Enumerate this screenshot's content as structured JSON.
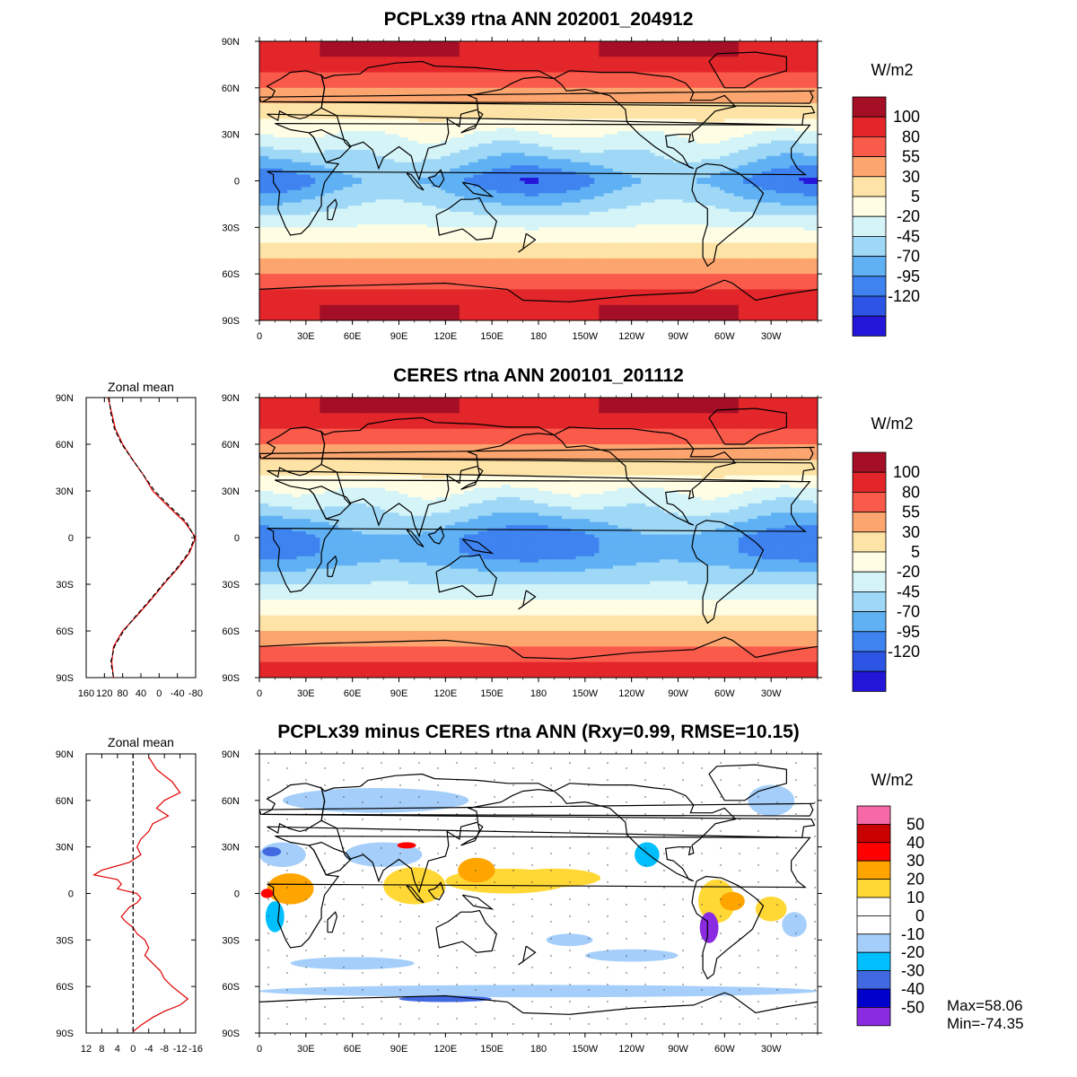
{
  "chart_data": [
    {
      "type": "heatmap",
      "title": "PCPLx39 rtna ANN 202001_204912",
      "units": "W/m2",
      "x_ticks": [
        "0",
        "30E",
        "60E",
        "90E",
        "120E",
        "150E",
        "180",
        "150W",
        "120W",
        "90W",
        "60W",
        "30W"
      ],
      "y_ticks": [
        "90N",
        "60N",
        "30N",
        "0",
        "30S",
        "60S",
        "90S"
      ],
      "colorbar": {
        "levels": [
          "100",
          "80",
          "55",
          "30",
          "5",
          "-20",
          "-45",
          "-70",
          "-95",
          "-120"
        ],
        "colors": [
          "#a50f26",
          "#e3262a",
          "#f95a4a",
          "#fca56f",
          "#fee3a6",
          "#fffde4",
          "#d4f4f8",
          "#9fd8f6",
          "#5fb1f4",
          "#3e83f0",
          "#2c55e6",
          "#2416d9"
        ]
      },
      "zonal_band_values": [
        100,
        100,
        80,
        55,
        30,
        5,
        -20,
        -45,
        -70,
        -95,
        -70,
        -45,
        -20,
        5,
        30,
        55,
        80,
        100,
        100
      ]
    },
    {
      "type": "heatmap",
      "title": "CERES rtna ANN 200101_201112",
      "units": "W/m2",
      "x_ticks": [
        "0",
        "30E",
        "60E",
        "90E",
        "120E",
        "150E",
        "180",
        "150W",
        "120W",
        "90W",
        "60W",
        "30W"
      ],
      "y_ticks": [
        "90N",
        "60N",
        "30N",
        "0",
        "30S",
        "60S",
        "90S"
      ],
      "colorbar": {
        "levels": [
          "100",
          "80",
          "55",
          "30",
          "5",
          "-20",
          "-45",
          "-70",
          "-95",
          "-120"
        ],
        "colors": [
          "#a50f26",
          "#e3262a",
          "#f95a4a",
          "#fca56f",
          "#fee3a6",
          "#fffde4",
          "#d4f4f8",
          "#9fd8f6",
          "#5fb1f4",
          "#3e83f0",
          "#2c55e6",
          "#2416d9"
        ]
      },
      "zonal_band_values": [
        100,
        100,
        80,
        55,
        30,
        5,
        -20,
        -45,
        -70,
        -95,
        -95,
        -70,
        -45,
        -20,
        5,
        30,
        55,
        80,
        100
      ]
    },
    {
      "type": "heatmap",
      "title": "PCPLx39 minus CERES rtna ANN (Rxy=0.99, RMSE=10.15)",
      "units": "W/m2",
      "x_ticks": [
        "0",
        "30E",
        "60E",
        "90E",
        "120E",
        "150E",
        "180",
        "150W",
        "120W",
        "90W",
        "60W",
        "30W"
      ],
      "y_ticks": [
        "90N",
        "60N",
        "30N",
        "0",
        "30S",
        "60S",
        "90S"
      ],
      "colorbar": {
        "levels": [
          "50",
          "40",
          "30",
          "20",
          "10",
          "0",
          "-10",
          "-20",
          "-30",
          "-40",
          "-50"
        ],
        "colors": [
          "#f768a8",
          "#c80000",
          "#ff0000",
          "#ffa500",
          "#ffd836",
          "#ffffff",
          "#ffffff",
          "#a5cffa",
          "#00bfff",
          "#4169e1",
          "#0000cd",
          "#8a2be2"
        ]
      },
      "max_label": "Max=58.06",
      "min_label": "Min=-74.35"
    },
    {
      "type": "line",
      "title": "Zonal mean",
      "x_ticks": [
        "160",
        "120",
        "80",
        "40",
        "0",
        "-40",
        "-80"
      ],
      "y_ticks": [
        "90N",
        "60N",
        "30N",
        "0",
        "30S",
        "60S",
        "90S"
      ],
      "xlim": [
        160,
        -80
      ],
      "series": [
        {
          "color": "#e00000",
          "lat": [
            90,
            80,
            70,
            60,
            50,
            40,
            30,
            20,
            10,
            0,
            -10,
            -20,
            -30,
            -40,
            -50,
            -60,
            -70,
            -80,
            -90
          ],
          "values": [
            112,
            104,
            96,
            80,
            58,
            34,
            14,
            -20,
            -56,
            -80,
            -66,
            -40,
            -10,
            18,
            48,
            80,
            100,
            104,
            100
          ]
        },
        {
          "color": "#000000",
          "lat": [
            90,
            80,
            70,
            60,
            50,
            40,
            30,
            20,
            10,
            0,
            -10,
            -20,
            -30,
            -40,
            -50,
            -60,
            -70,
            -80,
            -90
          ],
          "values": [
            110,
            106,
            98,
            82,
            58,
            34,
            10,
            -24,
            -60,
            -78,
            -64,
            -38,
            -8,
            20,
            50,
            78,
            98,
            106,
            100
          ]
        }
      ]
    },
    {
      "type": "line",
      "title": "Zonal mean",
      "x_ticks": [
        "12",
        "8",
        "4",
        "0",
        "-4",
        "-8",
        "-12",
        "-16"
      ],
      "y_ticks": [
        "90N",
        "60N",
        "30N",
        "0",
        "30S",
        "60S",
        "90S"
      ],
      "xlim": [
        12,
        -16
      ],
      "series": [
        {
          "color": "#e00000",
          "lat": [
            88,
            80,
            72,
            65,
            60,
            55,
            50,
            45,
            40,
            35,
            30,
            25,
            20,
            15,
            12,
            9,
            6,
            3,
            0,
            -3,
            -6,
            -9,
            -12,
            -15,
            -18,
            -22,
            -26,
            -30,
            -35,
            -40,
            -45,
            -50,
            -55,
            -60,
            -64,
            -68,
            -72,
            -76,
            -80,
            -85,
            -89
          ],
          "values": [
            -4,
            -6,
            -10,
            -12,
            -8,
            -6,
            -9,
            -5,
            -4,
            -2,
            -1,
            -2,
            1,
            8,
            10,
            4,
            3,
            4,
            -1,
            -2,
            -1,
            1,
            2,
            3,
            2,
            0,
            -1,
            -3,
            -4,
            -3,
            -5,
            -7,
            -8,
            -10,
            -12,
            -14,
            -12,
            -8,
            -5,
            -2,
            0
          ]
        },
        {
          "color": "#000000",
          "dashed": true,
          "lat": [
            90,
            -90
          ],
          "values": [
            0,
            0
          ]
        }
      ]
    }
  ]
}
